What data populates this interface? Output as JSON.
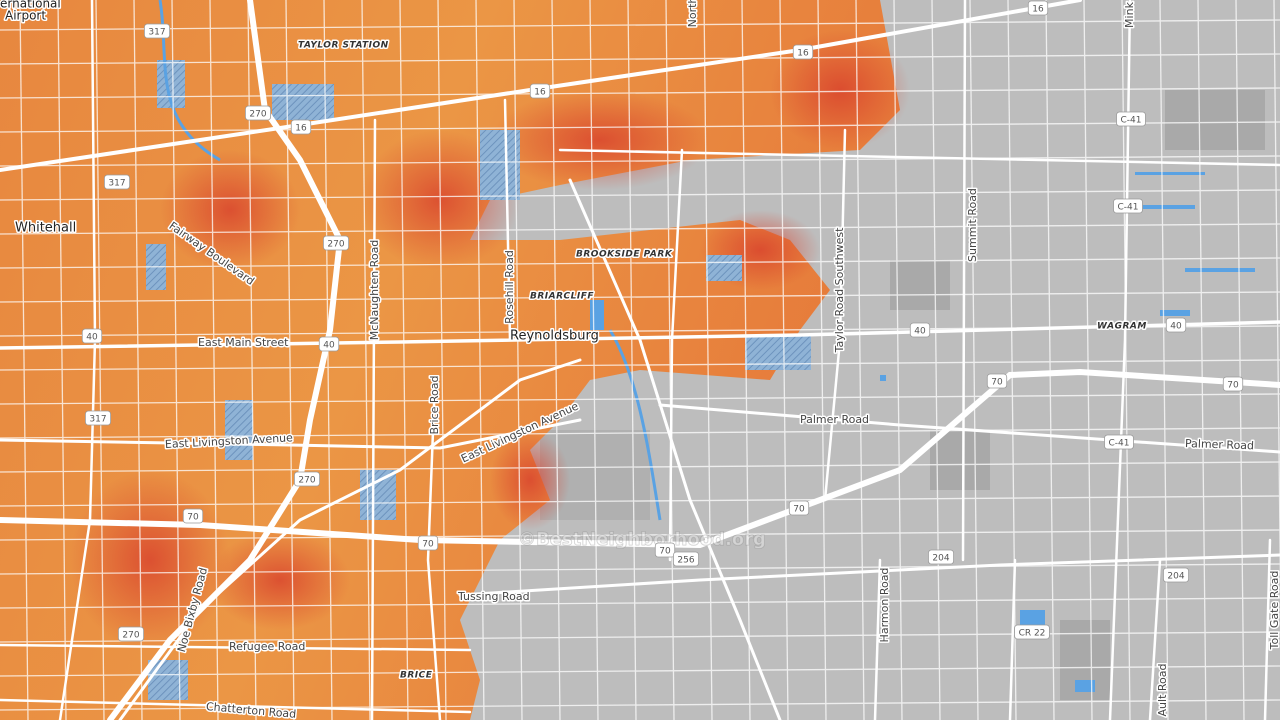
{
  "places": [
    "ernational",
    "Airport",
    "Whitehall",
    "TAYLOR STATION",
    "BROOKSIDE PARK",
    "BRIARCLIFF",
    "Reynoldsburg",
    "BRICE",
    "WAGRAM"
  ],
  "road_labels": [
    "Fairway Boulevard",
    "East Main Street",
    "McNaughten Road",
    "Rosehill Road",
    "Brice Road",
    "East Livingston Avenue",
    "East Livingston Avenue",
    "Taylor Road Southwest",
    "Summit Road",
    "Palmer Road",
    "Palmer Road",
    "Tussing Road",
    "Refugee Road",
    "Chatterton Road",
    "Noe Bixby Road",
    "Harmon Road",
    "Ault Road",
    "Toll Gate Road",
    "Mink",
    "North"
  ],
  "shields": [
    "317",
    "16",
    "270",
    "16",
    "317",
    "16",
    "16",
    "270",
    "40",
    "40",
    "40",
    "40",
    "317",
    "270",
    "70",
    "70",
    "70",
    "256",
    "70",
    "70",
    "70",
    "204",
    "204",
    "C-41",
    "C-41",
    "C-41",
    "CR 22",
    "270"
  ],
  "watermark": "©BestNeighborhood.org"
}
